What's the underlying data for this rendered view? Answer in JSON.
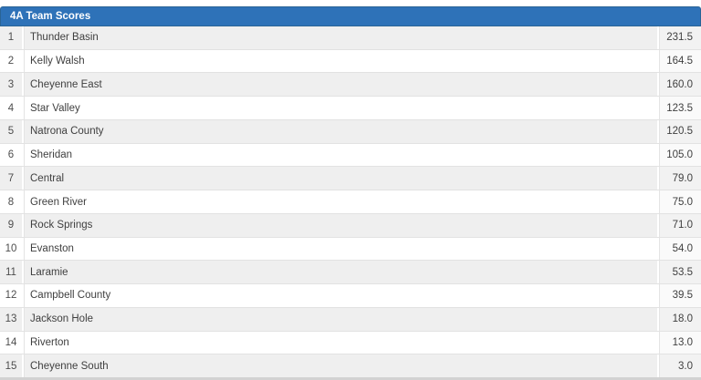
{
  "header": {
    "title": "4A Team Scores"
  },
  "table": {
    "rows": [
      {
        "rank": "1",
        "team": "Thunder Basin",
        "score": "231.5"
      },
      {
        "rank": "2",
        "team": "Kelly Walsh",
        "score": "164.5"
      },
      {
        "rank": "3",
        "team": "Cheyenne East",
        "score": "160.0"
      },
      {
        "rank": "4",
        "team": "Star Valley",
        "score": "123.5"
      },
      {
        "rank": "5",
        "team": "Natrona County",
        "score": "120.5"
      },
      {
        "rank": "6",
        "team": "Sheridan",
        "score": "105.0"
      },
      {
        "rank": "7",
        "team": "Central",
        "score": "79.0"
      },
      {
        "rank": "8",
        "team": "Green River",
        "score": "75.0"
      },
      {
        "rank": "9",
        "team": "Rock Springs",
        "score": "71.0"
      },
      {
        "rank": "10",
        "team": "Evanston",
        "score": "54.0"
      },
      {
        "rank": "11",
        "team": "Laramie",
        "score": "53.5"
      },
      {
        "rank": "12",
        "team": "Campbell County",
        "score": "39.5"
      },
      {
        "rank": "13",
        "team": "Jackson Hole",
        "score": "18.0"
      },
      {
        "rank": "14",
        "team": "Riverton",
        "score": "13.0"
      },
      {
        "rank": "15",
        "team": "Cheyenne South",
        "score": "3.0"
      }
    ]
  },
  "colors": {
    "header_bg": "#2e72b8",
    "header_border": "#2a6496",
    "header_text": "#ffffff",
    "row_odd": "#efefef",
    "row_even": "#ffffff",
    "score_odd": "#f2f2f2",
    "score_even": "#fafafa",
    "divider": "#e4e4e4",
    "row_border": "#e2e2e2",
    "text": "#3f3f3f",
    "rank_text": "#4d4d4d",
    "bottom_strip": "#d2d2d2"
  }
}
